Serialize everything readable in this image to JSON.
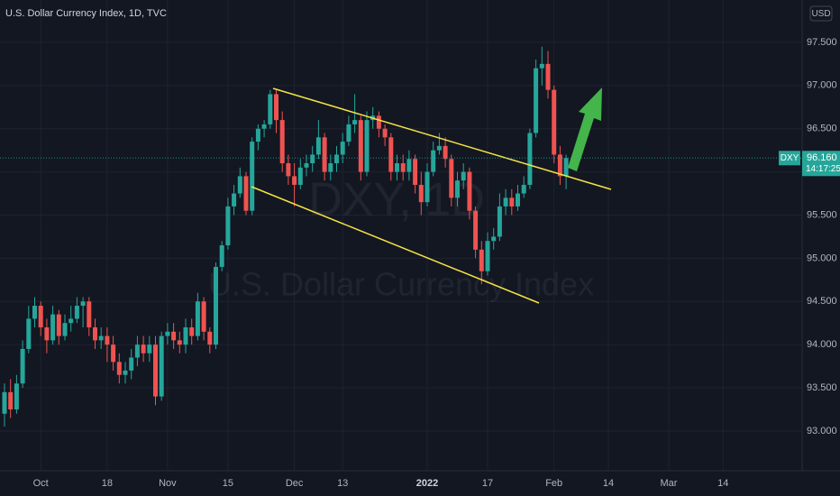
{
  "chart_data": {
    "type": "candlestick",
    "title": "U.S. Dollar Currency Index, 1D, TVC",
    "currency": "USD",
    "watermark": [
      "DXY, 1D",
      "U.S. Dollar Currency Index"
    ],
    "categories": [
      null,
      null,
      null,
      null,
      null,
      null,
      "Oct",
      null,
      null,
      null,
      null,
      null,
      null,
      null,
      null,
      null,
      null,
      "18",
      null,
      null,
      null,
      null,
      null,
      null,
      null,
      null,
      null,
      "Nov",
      null,
      null,
      null,
      null,
      null,
      null,
      null,
      null,
      null,
      "15",
      null,
      null,
      null,
      null,
      null,
      null,
      null,
      null,
      null,
      null,
      "Dec",
      null,
      null,
      null,
      null,
      null,
      null,
      null,
      "13",
      null,
      null,
      null,
      null,
      null,
      null,
      null,
      null,
      null,
      null,
      null,
      null,
      null,
      "2022",
      null,
      null,
      null,
      null,
      null,
      null,
      null,
      null,
      null,
      "17",
      null,
      null,
      null,
      null,
      null,
      null,
      null,
      null,
      null,
      null,
      "Feb",
      null,
      null,
      null,
      null,
      null,
      null,
      null,
      null,
      "14",
      null,
      null,
      null,
      null,
      null,
      null,
      null,
      null,
      null,
      "Mar",
      null,
      null,
      null,
      null,
      null,
      null,
      null,
      null,
      "14",
      null,
      null,
      null,
      null,
      null,
      null,
      null,
      null,
      null,
      null,
      null,
      null,
      null
    ],
    "open": [
      93.2,
      93.45,
      93.25,
      93.55,
      93.95,
      94.3,
      94.45,
      94.2,
      94.05,
      94.35,
      94.1,
      94.25,
      94.3,
      94.45,
      94.5,
      94.2,
      94.05,
      94.1,
      94.0,
      93.8,
      93.65,
      93.7,
      93.85,
      94.0,
      93.9,
      94.0,
      93.4,
      94.1,
      94.15,
      94.05,
      94.0,
      94.2,
      94.1,
      94.5,
      94.15,
      94.0,
      94.9,
      95.15,
      95.6,
      95.75,
      95.95,
      95.55,
      96.35,
      96.5,
      96.55,
      96.9,
      96.6,
      96.1,
      95.95,
      95.85,
      96.05,
      96.1,
      96.2,
      96.4,
      96.0,
      96.1,
      96.2,
      96.35,
      96.55,
      96.6,
      96.0,
      96.6,
      96.65,
      96.5,
      96.4,
      96.0,
      96.1,
      96.0,
      96.15,
      95.85,
      95.65,
      96.0,
      96.25,
      96.3,
      96.15,
      95.7,
      95.9,
      96.0,
      95.55,
      95.1,
      94.85,
      95.2,
      95.25,
      95.6,
      95.7,
      95.6,
      95.75,
      95.85,
      96.45,
      97.2,
      97.25,
      96.95,
      96.2,
      95.95,
      null,
      null,
      null,
      null,
      null,
      null,
      null,
      null,
      null,
      null,
      null,
      null,
      null,
      null,
      null,
      null,
      null,
      null,
      null,
      null,
      null,
      null,
      null,
      null,
      null,
      null,
      null,
      null,
      null,
      null,
      null,
      null,
      null,
      null,
      null,
      null,
      null,
      null,
      null
    ],
    "high": [
      93.55,
      93.6,
      93.65,
      94.05,
      94.45,
      94.55,
      94.5,
      94.3,
      94.45,
      94.4,
      94.35,
      94.45,
      94.55,
      94.55,
      94.55,
      94.3,
      94.2,
      94.2,
      94.1,
      93.9,
      93.8,
      93.95,
      94.1,
      94.1,
      94.1,
      94.1,
      94.15,
      94.25,
      94.25,
      94.15,
      94.3,
      94.3,
      94.6,
      94.55,
      94.2,
      94.95,
      95.2,
      95.7,
      95.85,
      96.05,
      96.0,
      96.4,
      96.55,
      96.6,
      96.95,
      96.95,
      96.7,
      96.2,
      96.1,
      96.15,
      96.2,
      96.3,
      96.6,
      96.45,
      96.2,
      96.3,
      96.45,
      96.65,
      96.9,
      96.65,
      96.7,
      96.75,
      96.7,
      96.55,
      96.45,
      96.2,
      96.2,
      96.25,
      96.2,
      96.0,
      96.1,
      96.35,
      96.45,
      96.4,
      96.2,
      96.0,
      96.1,
      96.05,
      95.6,
      95.2,
      95.3,
      95.35,
      95.75,
      95.8,
      95.8,
      95.85,
      95.95,
      96.5,
      97.3,
      97.45,
      97.4,
      97.0,
      96.3,
      96.2,
      null,
      null,
      null,
      null,
      null,
      null,
      null,
      null,
      null,
      null,
      null,
      null,
      null,
      null,
      null,
      null,
      null,
      null,
      null,
      null,
      null,
      null,
      null,
      null,
      null,
      null,
      null,
      null,
      null,
      null,
      null,
      null,
      null,
      null,
      null,
      null,
      null,
      null,
      null
    ],
    "low": [
      93.05,
      93.15,
      93.2,
      93.5,
      93.9,
      94.2,
      94.1,
      93.9,
      94.0,
      94.0,
      94.05,
      94.15,
      94.25,
      94.2,
      94.1,
      93.95,
      93.95,
      93.8,
      93.7,
      93.55,
      93.55,
      93.6,
      93.75,
      93.8,
      93.8,
      93.3,
      93.35,
      94.0,
      93.95,
      93.9,
      93.9,
      94.0,
      94.05,
      94.05,
      93.9,
      93.95,
      94.85,
      95.1,
      95.5,
      95.7,
      95.5,
      95.5,
      96.25,
      96.4,
      96.5,
      96.45,
      96.0,
      95.85,
      95.6,
      95.8,
      95.95,
      96.0,
      96.15,
      95.9,
      95.9,
      96.0,
      96.1,
      96.3,
      96.45,
      95.9,
      95.95,
      96.5,
      96.4,
      96.3,
      95.9,
      95.9,
      95.9,
      95.9,
      95.75,
      95.5,
      95.6,
      95.95,
      96.2,
      96.05,
      95.6,
      95.6,
      95.8,
      95.45,
      95.0,
      94.7,
      94.8,
      95.1,
      95.2,
      95.5,
      95.5,
      95.55,
      95.7,
      95.8,
      96.4,
      97.0,
      96.85,
      96.1,
      95.85,
      95.8,
      null,
      null,
      null,
      null,
      null,
      null,
      null,
      null,
      null,
      null,
      null,
      null,
      null,
      null,
      null,
      null,
      null,
      null,
      null,
      null,
      null,
      null,
      null,
      null,
      null,
      null,
      null,
      null,
      null,
      null,
      null,
      null,
      null,
      null,
      null,
      null,
      null,
      null,
      null
    ],
    "close": [
      93.45,
      93.25,
      93.55,
      93.95,
      94.3,
      94.45,
      94.2,
      94.05,
      94.35,
      94.1,
      94.25,
      94.3,
      94.45,
      94.5,
      94.2,
      94.05,
      94.1,
      94.0,
      93.8,
      93.65,
      93.7,
      93.85,
      94.0,
      93.9,
      94.0,
      93.4,
      94.1,
      94.15,
      94.05,
      94.0,
      94.2,
      94.1,
      94.5,
      94.15,
      94.0,
      94.9,
      95.15,
      95.6,
      95.75,
      95.95,
      95.55,
      96.35,
      96.5,
      96.55,
      96.9,
      96.6,
      96.1,
      95.95,
      95.85,
      96.05,
      96.1,
      96.2,
      96.4,
      96.0,
      96.1,
      96.2,
      96.35,
      96.55,
      96.6,
      96.0,
      96.6,
      96.65,
      96.5,
      96.4,
      96.0,
      96.1,
      96.0,
      96.15,
      95.85,
      95.65,
      96.0,
      96.25,
      96.3,
      96.15,
      95.7,
      95.9,
      96.0,
      95.55,
      95.1,
      94.85,
      95.2,
      95.25,
      95.6,
      95.7,
      95.6,
      95.75,
      95.85,
      96.45,
      97.2,
      97.25,
      96.95,
      96.2,
      95.95,
      96.16,
      null,
      null,
      null,
      null,
      null,
      null,
      null,
      null,
      null,
      null,
      null,
      null,
      null,
      null,
      null,
      null,
      null,
      null,
      null,
      null,
      null,
      null,
      null,
      null,
      null,
      null,
      null,
      null,
      null,
      null,
      null,
      null,
      null,
      null,
      null,
      null,
      null,
      null,
      null
    ],
    "last_price": {
      "symbol": "DXY",
      "value": 96.16,
      "label": "96.160",
      "countdown": "14:17:25"
    },
    "up_color": "#26a69a",
    "down_color": "#ef5350",
    "ylim": [
      92.54,
      97.99
    ],
    "yticks": [
      {
        "value": 93.0,
        "label": "93.000"
      },
      {
        "value": 93.5,
        "label": "93.500"
      },
      {
        "value": 94.0,
        "label": "94.000"
      },
      {
        "value": 94.5,
        "label": "94.500"
      },
      {
        "value": 95.0,
        "label": "95.000"
      },
      {
        "value": 95.5,
        "label": "95.500"
      },
      {
        "value": 96.0,
        "label": "96.000"
      },
      {
        "value": 96.5,
        "label": "96.500"
      },
      {
        "value": 97.0,
        "label": "97.000"
      },
      {
        "value": 97.5,
        "label": "97.500"
      }
    ],
    "grid": true
  }
}
